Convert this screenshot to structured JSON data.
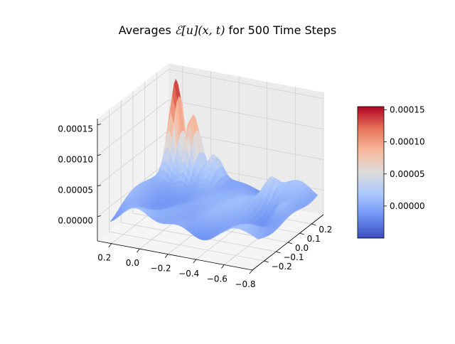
{
  "chart_data": {
    "type": "surface",
    "title": {
      "prefix": "Averages ",
      "math": "ℰ[u](x, t)",
      "suffix": " for 500 Time Steps"
    },
    "colormap": "coolwarm",
    "colormap_stops": [
      "#3b4cc0",
      "#6f92f3",
      "#aac7fd",
      "#dddcdc",
      "#f7b89c",
      "#e7745b",
      "#b40426"
    ],
    "axes": {
      "x": {
        "range": [
          -0.8,
          0.3
        ],
        "ticks": [
          0.2,
          0.0,
          -0.2,
          -0.4,
          -0.6,
          -0.8
        ],
        "tick_labels": [
          "0.2",
          "0.0",
          "−0.2",
          "−0.4",
          "−0.6",
          "−0.8"
        ]
      },
      "y": {
        "range": [
          -0.3,
          0.3
        ],
        "ticks": [
          -0.2,
          -0.1,
          0.0,
          0.1,
          0.2
        ],
        "tick_labels": [
          "−0.2",
          "−0.1",
          "0.0",
          "0.1",
          "0.2"
        ]
      },
      "z": {
        "range": [
          -4e-05,
          0.00016
        ],
        "ticks": [
          0.0,
          5e-05,
          0.0001,
          0.00015
        ],
        "tick_labels": [
          "0.00000",
          "0.00005",
          "0.00010",
          "0.00015"
        ]
      }
    },
    "colorbar": {
      "range": [
        -5e-05,
        0.000155
      ],
      "ticks": [
        0.0,
        5e-05,
        0.0001,
        0.00015
      ],
      "tick_labels": [
        "0.00000",
        "0.00005",
        "0.00010",
        "0.00015"
      ]
    },
    "grid": true,
    "surface_peaks": [
      {
        "x": 0.18,
        "y": 0.22,
        "z": 0.000148
      },
      {
        "x": 0.05,
        "y": 0.2,
        "z": 9.5e-05
      },
      {
        "x": -0.1,
        "y": 0.2,
        "z": 4e-05
      },
      {
        "x": -0.55,
        "y": 0.15,
        "z": 3.5e-05
      },
      {
        "x": -0.7,
        "y": 0.05,
        "z": 2.5e-05
      }
    ]
  }
}
